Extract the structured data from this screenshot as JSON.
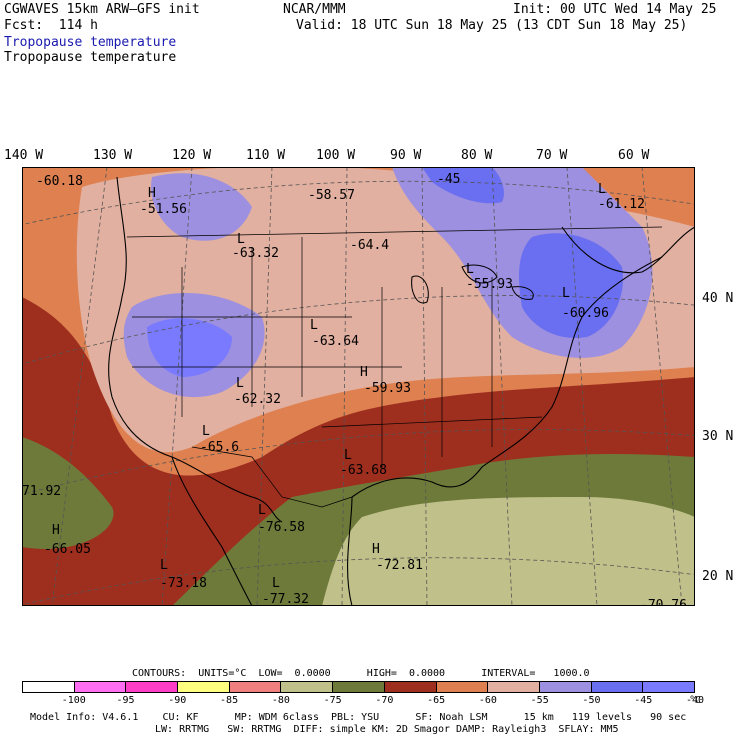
{
  "header": {
    "model": "CGWAVES 15km ARW–GFS init",
    "forecast": "Fcst:  114 h",
    "org": "NCAR/MMM",
    "init": "Init: 00 UTC Wed 14 May 25",
    "valid": "Valid: 18 UTC Sun 18 May 25 (13 CDT Sun 18 May 25)",
    "field_blue": "Tropopause temperature",
    "field_black": "Tropopause temperature"
  },
  "longitude_labels": [
    "140 W",
    "130 W",
    "120 W",
    "110 W",
    "100 W",
    "90 W",
    "80 W",
    "70 W",
    "60 W"
  ],
  "latitude_labels": [
    "40 N",
    "30 N",
    "20 N"
  ],
  "map_labels": {
    "v1": "-60.18",
    "h1": "H",
    "v2": "-51.56",
    "v3": "-58.57",
    "v4": "-45",
    "l1": "L",
    "v5": "-63.32",
    "v6": "-64.4",
    "l2": "L",
    "v7": "-55.93",
    "l3": "L",
    "v8": "-61.12",
    "l4": "L",
    "v9": "-60.96",
    "l5": "L",
    "v10": "-63.64",
    "h2": "H",
    "v11": "-59.93",
    "l6": "L",
    "v12": "-62.32",
    "l7": "L",
    "v13": "-65.6",
    "l8": "L",
    "v14": "-63.68",
    "v15": "71.92",
    "h3": "H",
    "v16": "-66.05",
    "l9": "L",
    "v17": "-76.58",
    "h4": "H",
    "v18": "-72.81",
    "l10": "L",
    "v19": "-73.18",
    "l11": "L",
    "v20": "-77.32",
    "v21": "-70.76"
  },
  "contours_line": "CONTOURS:  UNITS=°C  LOW=  0.0000      HIGH=  0.0000      INTERVAL=   1000.0",
  "legend": {
    "unit": "°C",
    "ticks": [
      "-100",
      "-95",
      "-90",
      "-85",
      "-80",
      "-75",
      "-70",
      "-65",
      "-60",
      "-55",
      "-50",
      "-45",
      "-40"
    ],
    "colors": [
      "#ffffff",
      "#ff6ef0",
      "#ff3ec8",
      "#ffff80",
      "#f08080",
      "#c0c08a",
      "#6e7a3a",
      "#9e2e1e",
      "#de8050",
      "#e2b0a0",
      "#9e90e0",
      "#6a6ef0",
      "#7a7aff"
    ]
  },
  "footer": {
    "line1": "Model Info: V4.6.1    CU: KF      MP: WDM 6class  PBL: YSU      SF: Noah LSM      15 km   119 levels   90 sec",
    "line2": "LW: RRTMG   SW: RRTMG  DIFF: simple KM: 2D Smagor DAMP: Rayleigh3  SFLAY: MM5"
  }
}
